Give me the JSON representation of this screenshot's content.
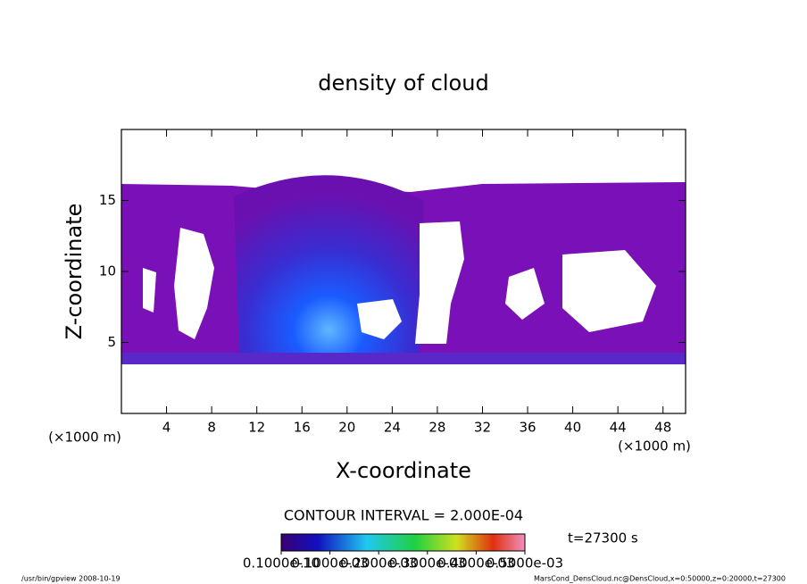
{
  "chart_data": {
    "type": "contour",
    "title": "density of cloud",
    "x_label": "X-coordinate",
    "y_label": "Z-coordinate",
    "x_unit": "(×1000 m)",
    "y_unit": "(×1000 m)",
    "xlim": [
      0,
      50
    ],
    "xticks": [
      4,
      8,
      12,
      16,
      20,
      24,
      28,
      32,
      36,
      40,
      44,
      48
    ],
    "ylim": [
      0,
      20
    ],
    "yticks": [
      5,
      10,
      15
    ],
    "contour_interval": "CONTOUR INTERVAL = 2.000E-04",
    "time_label": "t=27300 s",
    "colorbar_lim": [
      0,
      0.0005
    ],
    "colorbar_ticks": [
      {
        "value": 1e-11,
        "label": "0.1000e-10"
      },
      {
        "value": 0.0001,
        "label": "0.1000e-03"
      },
      {
        "value": 0.0002,
        "label": "0.2000e-03"
      },
      {
        "value": 0.0003,
        "label": "0.3000e-03"
      },
      {
        "value": 0.0004,
        "label": "0.4000e-03"
      },
      {
        "value": 0.0005,
        "label": "0.5000e-03"
      }
    ],
    "footer_left": "/usr/bin/gpview   2008-10-19",
    "footer_right": "MarsCond_DensCloud.nc@DensCloud,x=0:50000,z=0:20000,t=27300"
  }
}
